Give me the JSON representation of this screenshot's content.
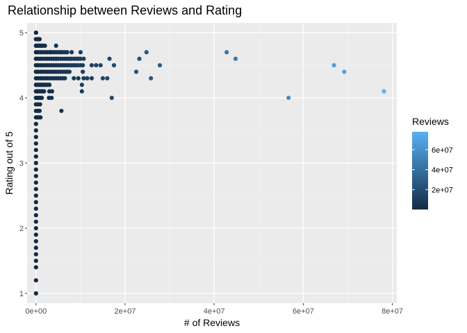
{
  "chart_data": {
    "type": "scatter",
    "title": "Relationship between Reviews and Rating",
    "xlabel": "# of Reviews",
    "ylabel": "Rating out of 5",
    "xlim": [
      -2000000,
      81000000
    ],
    "ylim": [
      0.85,
      5.15
    ],
    "x_ticks": [
      0,
      20000000,
      40000000,
      60000000,
      80000000
    ],
    "x_tick_labels": [
      "0e+00",
      "2e+07",
      "4e+07",
      "6e+07",
      "8e+07"
    ],
    "y_ticks": [
      1,
      2,
      3,
      4,
      5
    ],
    "y_tick_labels": [
      "1",
      "2",
      "3",
      "4",
      "5"
    ],
    "grid": true,
    "legend": {
      "title": "Reviews",
      "position": "right",
      "color_low": "#132b43",
      "color_high": "#56b1f7",
      "range": [
        0,
        78000000
      ],
      "tick_values": [
        20000000,
        40000000,
        60000000
      ],
      "tick_labels": [
        "2e+07",
        "4e+07",
        "6e+07"
      ]
    },
    "points": [
      {
        "x": 0,
        "y": 1.0
      },
      {
        "x": 0,
        "y": 1.2
      },
      {
        "x": 0,
        "y": 1.4
      },
      {
        "x": 0,
        "y": 1.5
      },
      {
        "x": 0,
        "y": 1.6
      },
      {
        "x": 0,
        "y": 1.7
      },
      {
        "x": 0,
        "y": 1.8
      },
      {
        "x": 0,
        "y": 1.9
      },
      {
        "x": 0,
        "y": 2.0
      },
      {
        "x": 0,
        "y": 2.1
      },
      {
        "x": 0,
        "y": 2.2
      },
      {
        "x": 0,
        "y": 2.3
      },
      {
        "x": 0,
        "y": 2.4
      },
      {
        "x": 0,
        "y": 2.5
      },
      {
        "x": 0,
        "y": 2.6
      },
      {
        "x": 0,
        "y": 2.7
      },
      {
        "x": 0,
        "y": 2.8
      },
      {
        "x": 0,
        "y": 2.9
      },
      {
        "x": 0,
        "y": 3.0
      },
      {
        "x": 0,
        "y": 3.1
      },
      {
        "x": 0,
        "y": 3.2
      },
      {
        "x": 0,
        "y": 3.3
      },
      {
        "x": 0,
        "y": 3.4
      },
      {
        "x": 0,
        "y": 3.5
      },
      {
        "x": 0,
        "y": 3.6
      },
      {
        "x": 0,
        "y": 3.7
      },
      {
        "x": 0,
        "y": 3.8
      },
      {
        "x": 0,
        "y": 3.9
      },
      {
        "x": 0,
        "y": 4.0
      },
      {
        "x": 0,
        "y": 4.1
      },
      {
        "x": 0,
        "y": 4.2
      },
      {
        "x": 0,
        "y": 4.3
      },
      {
        "x": 0,
        "y": 4.4
      },
      {
        "x": 0,
        "y": 4.5
      },
      {
        "x": 0,
        "y": 4.6
      },
      {
        "x": 0,
        "y": 4.7
      },
      {
        "x": 0,
        "y": 4.8
      },
      {
        "x": 0,
        "y": 4.9
      },
      {
        "x": 0,
        "y": 5.0
      },
      {
        "x": 300000,
        "y": 3.7
      },
      {
        "x": 600000,
        "y": 3.7
      },
      {
        "x": 1000000,
        "y": 3.7
      },
      {
        "x": 400000,
        "y": 3.8
      },
      {
        "x": 800000,
        "y": 3.8
      },
      {
        "x": 400000,
        "y": 3.9
      },
      {
        "x": 900000,
        "y": 3.9
      },
      {
        "x": 300000,
        "y": 4.0
      },
      {
        "x": 800000,
        "y": 4.0
      },
      {
        "x": 1300000,
        "y": 4.0
      },
      {
        "x": 300000,
        "y": 4.1
      },
      {
        "x": 800000,
        "y": 4.1
      },
      {
        "x": 1300000,
        "y": 4.1
      },
      {
        "x": 1800000,
        "y": 4.1
      },
      {
        "x": 300000,
        "y": 4.2
      },
      {
        "x": 800000,
        "y": 4.2
      },
      {
        "x": 1300000,
        "y": 4.2
      },
      {
        "x": 1800000,
        "y": 4.2
      },
      {
        "x": 2400000,
        "y": 4.2
      },
      {
        "x": 3000000,
        "y": 4.2
      },
      {
        "x": 300000,
        "y": 4.9
      },
      {
        "x": 800000,
        "y": 4.9
      },
      {
        "x": 300000,
        "y": 4.8
      },
      {
        "x": 800000,
        "y": 4.8
      },
      {
        "x": 1300000,
        "y": 4.8
      },
      {
        "x": 2900000,
        "y": 4.0
      },
      {
        "x": 3500000,
        "y": 4.0
      },
      {
        "x": 5700000,
        "y": 3.8
      },
      {
        "x": 3000000,
        "y": 4.1
      },
      {
        "x": 3600000,
        "y": 4.1
      },
      {
        "x": 4500000,
        "y": 4.8
      },
      {
        "x": 3200000,
        "y": 4.7
      },
      {
        "x": 5500000,
        "y": 4.7
      },
      {
        "x": 8000000,
        "y": 4.7
      },
      {
        "x": 10000000,
        "y": 4.7
      },
      {
        "x": 4500000,
        "y": 4.6
      },
      {
        "x": 7500000,
        "y": 4.6
      },
      {
        "x": 9500000,
        "y": 4.6
      },
      {
        "x": 10700000,
        "y": 4.6
      },
      {
        "x": 16500000,
        "y": 4.6
      },
      {
        "x": 6000000,
        "y": 4.5
      },
      {
        "x": 8500000,
        "y": 4.5
      },
      {
        "x": 10500000,
        "y": 4.5
      },
      {
        "x": 12500000,
        "y": 4.5
      },
      {
        "x": 13500000,
        "y": 4.5
      },
      {
        "x": 14500000,
        "y": 4.5
      },
      {
        "x": 17500000,
        "y": 4.5
      },
      {
        "x": 5000000,
        "y": 4.4
      },
      {
        "x": 7000000,
        "y": 4.4
      },
      {
        "x": 10500000,
        "y": 4.4
      },
      {
        "x": 5000000,
        "y": 4.3
      },
      {
        "x": 6500000,
        "y": 4.3
      },
      {
        "x": 8500000,
        "y": 4.3
      },
      {
        "x": 9500000,
        "y": 4.3
      },
      {
        "x": 10700000,
        "y": 4.3
      },
      {
        "x": 11500000,
        "y": 4.3
      },
      {
        "x": 12500000,
        "y": 4.3
      },
      {
        "x": 15000000,
        "y": 4.3
      },
      {
        "x": 16000000,
        "y": 4.3
      },
      {
        "x": 10300000,
        "y": 4.2
      },
      {
        "x": 10300000,
        "y": 4.1
      },
      {
        "x": 17000000,
        "y": 4.0
      },
      {
        "x": 22500000,
        "y": 4.4
      },
      {
        "x": 23200000,
        "y": 4.6
      },
      {
        "x": 24800000,
        "y": 4.7
      },
      {
        "x": 25800000,
        "y": 4.3
      },
      {
        "x": 27800000,
        "y": 4.5
      },
      {
        "x": 42800000,
        "y": 4.7
      },
      {
        "x": 44800000,
        "y": 4.6
      },
      {
        "x": 56700000,
        "y": 4.0
      },
      {
        "x": 66900000,
        "y": 4.5
      },
      {
        "x": 69200000,
        "y": 4.4
      },
      {
        "x": 78100000,
        "y": 4.1
      }
    ],
    "dense_cluster": {
      "y_levels": [
        4.0,
        4.1,
        4.2,
        4.3,
        4.4,
        4.5,
        4.6,
        4.7,
        4.8,
        4.9,
        5.0
      ],
      "x_max": [
        1000000,
        1800000,
        3200000,
        6000000,
        7500000,
        10000000,
        10000000,
        7000000,
        2000000,
        800000,
        400000
      ],
      "step": 500000
    }
  }
}
